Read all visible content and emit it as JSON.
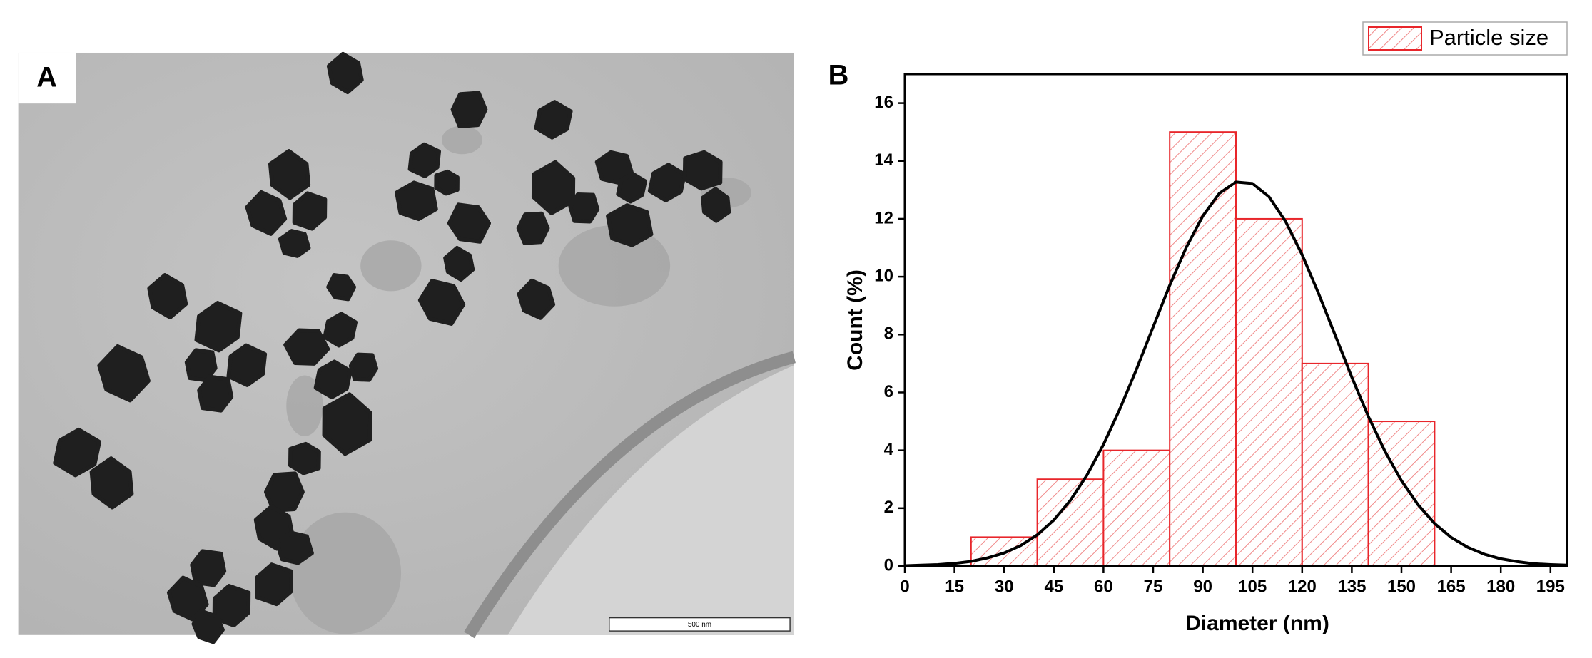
{
  "image_panel": {
    "label": "A",
    "scale_bar": "500 nm"
  },
  "chart_data": {
    "type": "histogram",
    "panel_label": "B",
    "xlabel": "Diameter (nm)",
    "ylabel": "Count (%)",
    "name": "Particle size",
    "color": "#e8262b",
    "bins": [
      20,
      40,
      60,
      80,
      100,
      120,
      140,
      160
    ],
    "values": [
      1,
      3,
      4,
      15,
      12,
      7,
      5
    ],
    "curve": {
      "type": "line",
      "color": "#000000",
      "x": [
        0,
        5,
        10,
        15,
        20,
        25,
        30,
        35,
        40,
        45,
        50,
        55,
        60,
        65,
        70,
        75,
        80,
        85,
        90,
        95,
        100,
        105,
        110,
        115,
        120,
        125,
        130,
        135,
        140,
        145,
        150,
        155,
        160,
        165,
        170,
        175,
        180,
        185,
        190,
        195,
        200
      ],
      "values": [
        0.01,
        0.03,
        0.05,
        0.09,
        0.16,
        0.28,
        0.45,
        0.71,
        1.08,
        1.59,
        2.27,
        3.14,
        4.2,
        5.44,
        6.81,
        8.26,
        9.7,
        11.01,
        12.1,
        12.88,
        13.27,
        13.22,
        12.76,
        11.91,
        10.76,
        9.41,
        7.97,
        6.53,
        5.17,
        3.97,
        2.95,
        2.12,
        1.47,
        0.99,
        0.65,
        0.41,
        0.25,
        0.15,
        0.08,
        0.05,
        0.03
      ]
    },
    "xlim": [
      0,
      200
    ],
    "xticks": [
      0,
      15,
      30,
      45,
      60,
      75,
      90,
      105,
      120,
      135,
      150,
      165,
      180,
      195
    ],
    "ylim": [
      0,
      17
    ],
    "yticks": [
      0,
      2,
      4,
      6,
      8,
      10,
      12,
      14,
      16
    ],
    "legend": "top-right"
  }
}
